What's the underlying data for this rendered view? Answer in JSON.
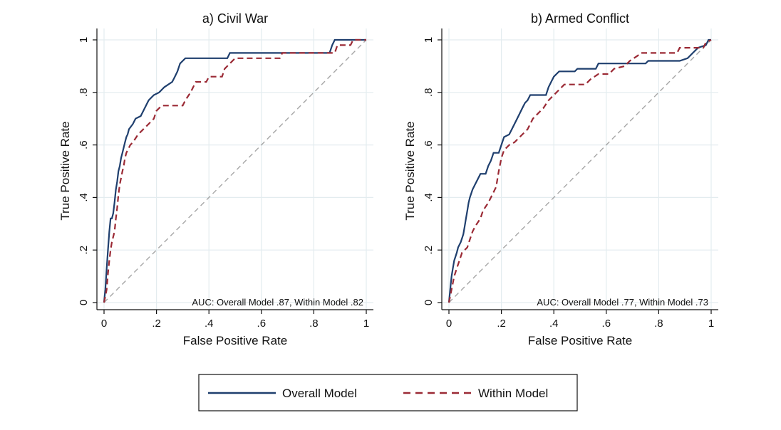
{
  "colors": {
    "overall": "#1f3f6e",
    "within": "#9b2a35",
    "reference": "#a6a6a6",
    "grid": "#e3ecef",
    "frame": "#111111"
  },
  "legend": {
    "placement": "bottom-center",
    "overall_label": "Overall Model",
    "within_label": "Within Model"
  },
  "chart_data": [
    {
      "type": "line",
      "title": "a) Civil War",
      "xlabel": "False Positive Rate",
      "ylabel": "True Positive Rate",
      "xlim": [
        0,
        1
      ],
      "ylim": [
        0,
        1
      ],
      "xticks": [
        "0",
        ".2",
        ".4",
        ".6",
        ".8",
        "1"
      ],
      "yticks": [
        "0",
        ".2",
        ".4",
        ".6",
        ".8",
        "1"
      ],
      "grid": true,
      "annotation": "AUC: Overall Model .87, Within Model .82",
      "series": [
        {
          "name": "Overall Model",
          "style": "solid",
          "points": [
            [
              0,
              0
            ],
            [
              0.005,
              0.05
            ],
            [
              0.01,
              0.13
            ],
            [
              0.015,
              0.2
            ],
            [
              0.02,
              0.27
            ],
            [
              0.025,
              0.32
            ],
            [
              0.03,
              0.32
            ],
            [
              0.035,
              0.34
            ],
            [
              0.04,
              0.38
            ],
            [
              0.045,
              0.43
            ],
            [
              0.05,
              0.46
            ],
            [
              0.055,
              0.5
            ],
            [
              0.06,
              0.52
            ],
            [
              0.065,
              0.55
            ],
            [
              0.07,
              0.57
            ],
            [
              0.075,
              0.59
            ],
            [
              0.08,
              0.61
            ],
            [
              0.085,
              0.63
            ],
            [
              0.09,
              0.64
            ],
            [
              0.095,
              0.66
            ],
            [
              0.11,
              0.68
            ],
            [
              0.12,
              0.7
            ],
            [
              0.14,
              0.71
            ],
            [
              0.15,
              0.73
            ],
            [
              0.16,
              0.75
            ],
            [
              0.17,
              0.77
            ],
            [
              0.19,
              0.79
            ],
            [
              0.21,
              0.8
            ],
            [
              0.23,
              0.82
            ],
            [
              0.26,
              0.84
            ],
            [
              0.27,
              0.86
            ],
            [
              0.28,
              0.88
            ],
            [
              0.29,
              0.91
            ],
            [
              0.31,
              0.93
            ],
            [
              0.47,
              0.93
            ],
            [
              0.48,
              0.95
            ],
            [
              0.86,
              0.95
            ],
            [
              0.87,
              0.98
            ],
            [
              0.88,
              1.0
            ],
            [
              1,
              1
            ]
          ]
        },
        {
          "name": "Within Model",
          "style": "dashed",
          "points": [
            [
              0,
              0
            ],
            [
              0.01,
              0.05
            ],
            [
              0.015,
              0.11
            ],
            [
              0.02,
              0.16
            ],
            [
              0.025,
              0.2
            ],
            [
              0.03,
              0.23
            ],
            [
              0.04,
              0.27
            ],
            [
              0.045,
              0.32
            ],
            [
              0.05,
              0.36
            ],
            [
              0.055,
              0.41
            ],
            [
              0.06,
              0.45
            ],
            [
              0.07,
              0.5
            ],
            [
              0.075,
              0.52
            ],
            [
              0.08,
              0.55
            ],
            [
              0.085,
              0.57
            ],
            [
              0.1,
              0.6
            ],
            [
              0.11,
              0.61
            ],
            [
              0.13,
              0.64
            ],
            [
              0.15,
              0.66
            ],
            [
              0.17,
              0.68
            ],
            [
              0.19,
              0.7
            ],
            [
              0.2,
              0.73
            ],
            [
              0.22,
              0.75
            ],
            [
              0.3,
              0.75
            ],
            [
              0.31,
              0.77
            ],
            [
              0.33,
              0.8
            ],
            [
              0.35,
              0.84
            ],
            [
              0.39,
              0.84
            ],
            [
              0.4,
              0.86
            ],
            [
              0.45,
              0.86
            ],
            [
              0.46,
              0.89
            ],
            [
              0.48,
              0.91
            ],
            [
              0.5,
              0.93
            ],
            [
              0.67,
              0.93
            ],
            [
              0.68,
              0.95
            ],
            [
              0.88,
              0.95
            ],
            [
              0.89,
              0.98
            ],
            [
              0.94,
              0.98
            ],
            [
              0.95,
              1.0
            ],
            [
              1,
              1
            ]
          ]
        }
      ]
    },
    {
      "type": "line",
      "title": "b) Armed Conflict",
      "xlabel": "False Positive Rate",
      "ylabel": "True Positive Rate",
      "xlim": [
        0,
        1
      ],
      "ylim": [
        0,
        1
      ],
      "xticks": [
        "0",
        ".2",
        ".4",
        ".6",
        ".8",
        "1"
      ],
      "yticks": [
        "0",
        ".2",
        ".4",
        ".6",
        ".8",
        "1"
      ],
      "grid": true,
      "annotation": "AUC: Overall Model .77, Within Model .73",
      "series": [
        {
          "name": "Overall Model",
          "style": "solid",
          "points": [
            [
              0,
              0
            ],
            [
              0.005,
              0.05
            ],
            [
              0.01,
              0.1
            ],
            [
              0.015,
              0.13
            ],
            [
              0.02,
              0.16
            ],
            [
              0.03,
              0.19
            ],
            [
              0.035,
              0.21
            ],
            [
              0.045,
              0.23
            ],
            [
              0.055,
              0.26
            ],
            [
              0.06,
              0.29
            ],
            [
              0.065,
              0.32
            ],
            [
              0.07,
              0.35
            ],
            [
              0.075,
              0.38
            ],
            [
              0.08,
              0.4
            ],
            [
              0.09,
              0.43
            ],
            [
              0.1,
              0.45
            ],
            [
              0.11,
              0.47
            ],
            [
              0.12,
              0.49
            ],
            [
              0.14,
              0.49
            ],
            [
              0.15,
              0.52
            ],
            [
              0.16,
              0.54
            ],
            [
              0.17,
              0.57
            ],
            [
              0.19,
              0.57
            ],
            [
              0.2,
              0.6
            ],
            [
              0.21,
              0.63
            ],
            [
              0.23,
              0.64
            ],
            [
              0.24,
              0.66
            ],
            [
              0.25,
              0.68
            ],
            [
              0.26,
              0.7
            ],
            [
              0.27,
              0.72
            ],
            [
              0.28,
              0.74
            ],
            [
              0.29,
              0.76
            ],
            [
              0.3,
              0.77
            ],
            [
              0.31,
              0.79
            ],
            [
              0.37,
              0.79
            ],
            [
              0.38,
              0.82
            ],
            [
              0.39,
              0.84
            ],
            [
              0.4,
              0.86
            ],
            [
              0.42,
              0.88
            ],
            [
              0.48,
              0.88
            ],
            [
              0.49,
              0.89
            ],
            [
              0.56,
              0.89
            ],
            [
              0.57,
              0.91
            ],
            [
              0.75,
              0.91
            ],
            [
              0.76,
              0.92
            ],
            [
              0.88,
              0.92
            ],
            [
              0.91,
              0.93
            ],
            [
              0.93,
              0.95
            ],
            [
              0.95,
              0.97
            ],
            [
              0.98,
              0.98
            ],
            [
              0.99,
              1.0
            ],
            [
              1,
              1
            ]
          ]
        },
        {
          "name": "Within Model",
          "style": "dashed",
          "points": [
            [
              0,
              0
            ],
            [
              0.01,
              0.05
            ],
            [
              0.02,
              0.1
            ],
            [
              0.03,
              0.13
            ],
            [
              0.04,
              0.16
            ],
            [
              0.05,
              0.19
            ],
            [
              0.06,
              0.2
            ],
            [
              0.07,
              0.21
            ],
            [
              0.08,
              0.24
            ],
            [
              0.09,
              0.27
            ],
            [
              0.1,
              0.29
            ],
            [
              0.12,
              0.32
            ],
            [
              0.13,
              0.35
            ],
            [
              0.15,
              0.38
            ],
            [
              0.16,
              0.4
            ],
            [
              0.17,
              0.42
            ],
            [
              0.18,
              0.44
            ],
            [
              0.19,
              0.5
            ],
            [
              0.2,
              0.55
            ],
            [
              0.21,
              0.58
            ],
            [
              0.23,
              0.6
            ],
            [
              0.25,
              0.61
            ],
            [
              0.27,
              0.63
            ],
            [
              0.3,
              0.66
            ],
            [
              0.31,
              0.68
            ],
            [
              0.32,
              0.7
            ],
            [
              0.34,
              0.72
            ],
            [
              0.36,
              0.74
            ],
            [
              0.38,
              0.77
            ],
            [
              0.4,
              0.79
            ],
            [
              0.42,
              0.81
            ],
            [
              0.44,
              0.83
            ],
            [
              0.52,
              0.83
            ],
            [
              0.54,
              0.85
            ],
            [
              0.57,
              0.87
            ],
            [
              0.61,
              0.87
            ],
            [
              0.63,
              0.89
            ],
            [
              0.67,
              0.9
            ],
            [
              0.69,
              0.92
            ],
            [
              0.72,
              0.94
            ],
            [
              0.73,
              0.95
            ],
            [
              0.87,
              0.95
            ],
            [
              0.88,
              0.97
            ],
            [
              0.97,
              0.97
            ],
            [
              0.98,
              0.99
            ],
            [
              1,
              1
            ]
          ]
        }
      ]
    }
  ]
}
